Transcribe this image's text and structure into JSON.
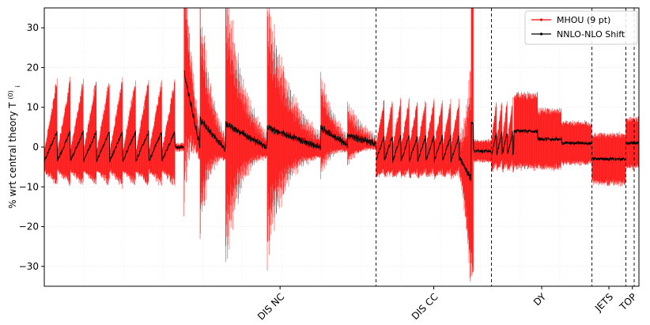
{
  "chart_data": {
    "type": "line",
    "title": "",
    "xlabel": "",
    "ylabel_main": "% wrt central theory T",
    "ylabel_sub": "i",
    "ylabel_sup": "(0)",
    "ylim": [
      -35,
      35
    ],
    "yticks": [
      -30,
      -20,
      -10,
      0,
      10,
      20,
      30
    ],
    "yticks_labels": [
      "−30",
      "−20",
      "−10",
      "0",
      "10",
      "20",
      "30"
    ],
    "grid": true,
    "legend_position": "top-right",
    "colors": {
      "mhou": "#ff0000",
      "shift": "#000000"
    },
    "series": [
      {
        "key": "mhou",
        "name": "MHOU (9 pt)",
        "style": "errorbar-envelope"
      },
      {
        "key": "shift",
        "name": "NNLO-NLO Shift",
        "style": "line-markers"
      }
    ],
    "x_range": [
      0,
      1000
    ],
    "process_groups": [
      {
        "label": "",
        "start": 0,
        "end": 235,
        "segments": [
          {
            "start": 0,
            "end": 220,
            "kind": "periodic",
            "period": 22,
            "env": [
              2.5,
              13
            ],
            "shift": [
              -3.5,
              4
            ],
            "dir": 1
          },
          {
            "start": 220,
            "end": 235,
            "kind": "flat",
            "env": 0.8,
            "shift": 0
          }
        ]
      },
      {
        "label": "DIS NC",
        "start": 235,
        "end": 558,
        "segments": [
          {
            "start": 235,
            "end": 262,
            "kind": "decay",
            "period": 4,
            "env0": 35,
            "env1": 4,
            "shift0": 18,
            "shift1": -1,
            "dir": 1
          },
          {
            "start": 262,
            "end": 305,
            "kind": "decay",
            "period": 3.5,
            "env0": 31,
            "env1": 3,
            "shift0": 6,
            "shift1": -1.5,
            "dir": 1
          },
          {
            "start": 305,
            "end": 375,
            "kind": "decay",
            "period": 3,
            "env0": 37,
            "env1": 3,
            "shift0": 5,
            "shift1": -1,
            "dir": 1
          },
          {
            "start": 375,
            "end": 465,
            "kind": "decay",
            "period": 3,
            "env0": 33,
            "env1": 3,
            "shift0": 4,
            "shift1": -1,
            "dir": 1
          },
          {
            "start": 465,
            "end": 510,
            "kind": "decay",
            "period": 3,
            "env0": 13,
            "env1": 2,
            "shift0": 4,
            "shift1": -0.5,
            "dir": 1
          },
          {
            "start": 510,
            "end": 558,
            "kind": "decay",
            "period": 3,
            "env0": 8,
            "env1": 1.5,
            "shift0": 2,
            "shift1": 0,
            "dir": 1
          }
        ]
      },
      {
        "label": "DIS CC",
        "start": 558,
        "end": 752,
        "segments": [
          {
            "start": 558,
            "end": 700,
            "kind": "periodic",
            "period": 14,
            "env": [
              4,
              9
            ],
            "shift": [
              -3.5,
              3
            ],
            "dir": 1
          },
          {
            "start": 700,
            "end": 718,
            "kind": "decay",
            "period": 2,
            "env0": 6,
            "env1": 35,
            "shift0": -4,
            "shift1": -9,
            "dir": 1
          },
          {
            "start": 718,
            "end": 722,
            "kind": "flat",
            "env": 35,
            "shift": 6
          },
          {
            "start": 722,
            "end": 752,
            "kind": "flat",
            "env": 2.5,
            "shift": -1
          }
        ]
      },
      {
        "label": "DY",
        "start": 752,
        "end": 921,
        "segments": [
          {
            "start": 752,
            "end": 790,
            "kind": "periodic",
            "period": 9,
            "env": [
              4,
              8
            ],
            "shift": [
              -2,
              4
            ],
            "dir": 1
          },
          {
            "start": 790,
            "end": 830,
            "kind": "flat",
            "env": 9,
            "shift": 4
          },
          {
            "start": 830,
            "end": 870,
            "kind": "flat",
            "env": 7,
            "shift": 2
          },
          {
            "start": 870,
            "end": 921,
            "kind": "flat",
            "env": 5,
            "shift": 1
          }
        ]
      },
      {
        "label": "JETS",
        "start": 921,
        "end": 978,
        "segments": [
          {
            "start": 921,
            "end": 978,
            "kind": "flat",
            "env": 6,
            "shift": -3
          }
        ]
      },
      {
        "label": "TOP",
        "start": 978,
        "end": 1000,
        "segments": [
          {
            "start": 978,
            "end": 1000,
            "kind": "flat",
            "env": 6,
            "shift": 1
          }
        ]
      }
    ],
    "separators_x": [
      558,
      752,
      921,
      978,
      992
    ]
  }
}
